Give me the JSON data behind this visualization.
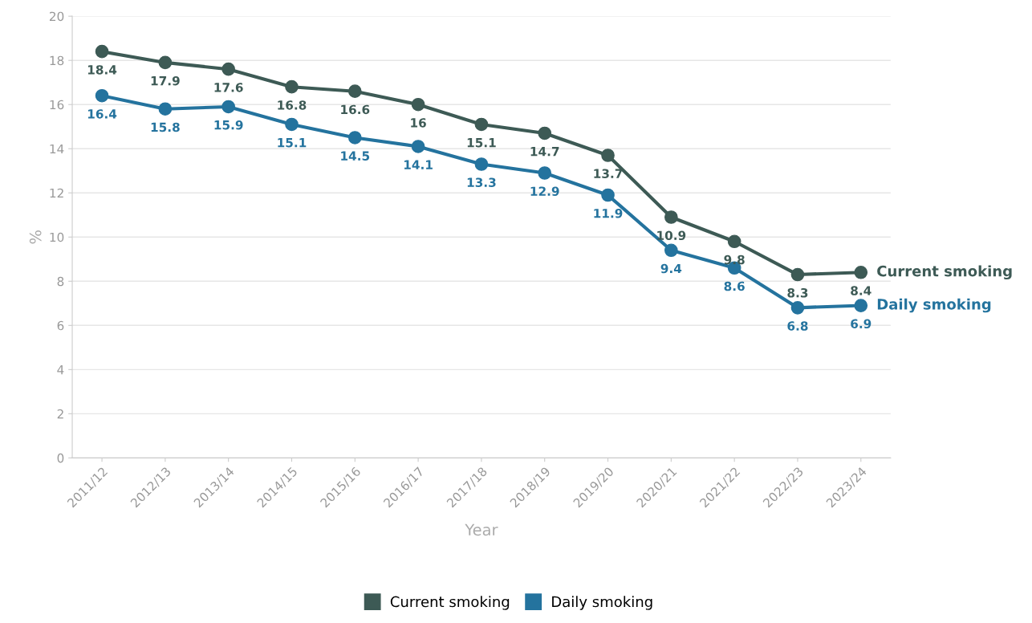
{
  "chart_data": {
    "type": "line",
    "xlabel": "Year",
    "ylabel": "%",
    "categories": [
      "2011/12",
      "2012/13",
      "2013/14",
      "2014/15",
      "2015/16",
      "2016/17",
      "2017/18",
      "2018/19",
      "2019/20",
      "2020/21",
      "2021/22",
      "2022/23",
      "2023/24"
    ],
    "series": [
      {
        "name": "Current smoking",
        "color": "#3d5a55",
        "values": [
          18.4,
          17.9,
          17.6,
          16.8,
          16.6,
          16,
          15.1,
          14.7,
          13.7,
          10.9,
          9.8,
          8.3,
          8.4
        ]
      },
      {
        "name": "Daily smoking",
        "color": "#24739e",
        "values": [
          16.4,
          15.8,
          15.9,
          15.1,
          14.5,
          14.1,
          13.3,
          12.9,
          11.9,
          9.4,
          8.6,
          6.8,
          6.9
        ]
      }
    ],
    "ylim": [
      0,
      20
    ],
    "yticks": [
      0,
      2,
      4,
      6,
      8,
      10,
      12,
      14,
      16,
      18,
      20
    ],
    "grid": "y",
    "legend": "bottom",
    "marker": "circle",
    "line_style": "solid",
    "data_labels": true
  }
}
